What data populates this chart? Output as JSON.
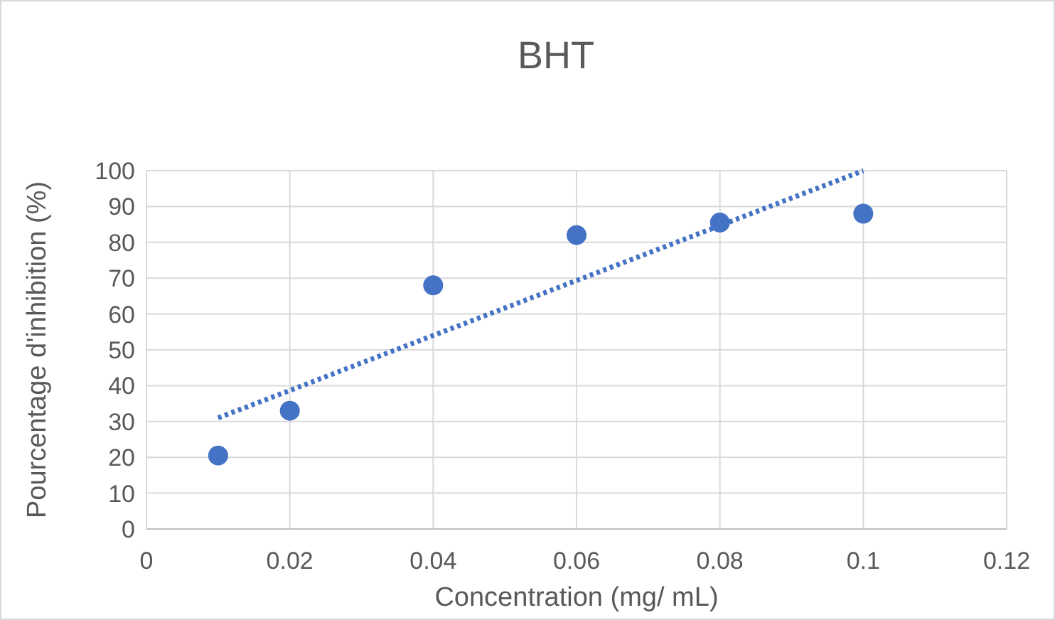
{
  "chart_data": {
    "type": "scatter",
    "title": "BHT",
    "xlabel": "Concentration (mg/ mL)",
    "ylabel": "Pourcentage d'inhibition (%)",
    "xlim": [
      0,
      0.12
    ],
    "xticks": [
      0,
      0.02,
      0.04,
      0.06,
      0.08,
      0.1,
      0.12
    ],
    "ylim": [
      0,
      100
    ],
    "yticks": [
      0,
      10,
      20,
      30,
      40,
      50,
      60,
      70,
      80,
      90,
      100
    ],
    "grid": true,
    "series": [
      {
        "color": "#4472c4",
        "marker": "circle",
        "x": [
          0.01,
          0.02,
          0.04,
          0.06,
          0.08,
          0.1
        ],
        "values": [
          20.5,
          33,
          68,
          82,
          85.5,
          88
        ]
      },
      {
        "type": "line",
        "color": "#4472c4",
        "line_style": "dotted",
        "x": [
          0.01,
          0.1
        ],
        "values": [
          31,
          100
        ]
      }
    ]
  }
}
